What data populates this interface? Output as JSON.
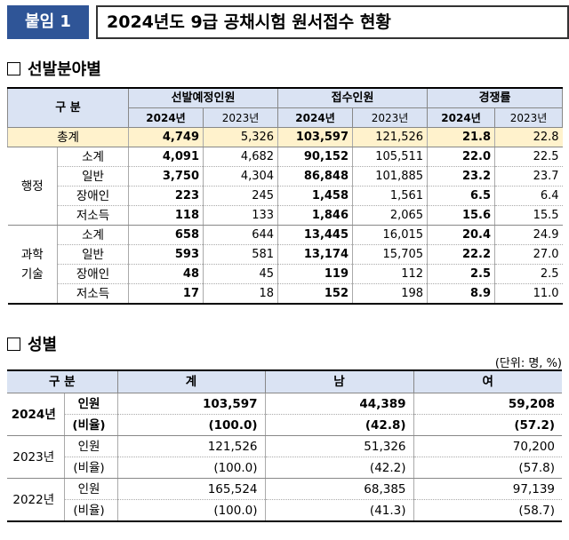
{
  "header": {
    "badge": "붙임 1",
    "title": "2024년도 9급 공채시험 원서접수 현황"
  },
  "section1": {
    "title": "선발분야별"
  },
  "section2": {
    "title": "성별",
    "unit": "(단위: 명, %)"
  },
  "table1": {
    "head_gubun": "구 분",
    "groups": [
      "선발예정인원",
      "접수인원",
      "경쟁률"
    ],
    "years": [
      "2024년",
      "2023년"
    ],
    "total": {
      "label": "총계",
      "vals": [
        "4,749",
        "5,326",
        "103,597",
        "121,526",
        "21.8",
        "22.8"
      ]
    },
    "admin": {
      "label": "행정",
      "rows": [
        {
          "label": "소계",
          "vals": [
            "4,091",
            "4,682",
            "90,152",
            "105,511",
            "22.0",
            "22.5"
          ]
        },
        {
          "label": "일반",
          "vals": [
            "3,750",
            "4,304",
            "86,848",
            "101,885",
            "23.2",
            "23.7"
          ]
        },
        {
          "label": "장애인",
          "vals": [
            "223",
            "245",
            "1,458",
            "1,561",
            "6.5",
            "6.4"
          ]
        },
        {
          "label": "저소득",
          "vals": [
            "118",
            "133",
            "1,846",
            "2,065",
            "15.6",
            "15.5"
          ]
        }
      ]
    },
    "tech": {
      "label1": "과학",
      "label2": "기술",
      "rows": [
        {
          "label": "소계",
          "vals": [
            "658",
            "644",
            "13,445",
            "16,015",
            "20.4",
            "24.9"
          ]
        },
        {
          "label": "일반",
          "vals": [
            "593",
            "581",
            "13,174",
            "15,705",
            "22.2",
            "27.0"
          ]
        },
        {
          "label": "장애인",
          "vals": [
            "48",
            "45",
            "119",
            "112",
            "2.5",
            "2.5"
          ]
        },
        {
          "label": "저소득",
          "vals": [
            "17",
            "18",
            "152",
            "198",
            "8.9",
            "11.0"
          ]
        }
      ]
    }
  },
  "table2": {
    "headers": [
      "구 분",
      "계",
      "남",
      "여"
    ],
    "rows": [
      {
        "year": "2024년",
        "lab1": "인원",
        "v1": [
          "103,597",
          "44,389",
          "59,208"
        ],
        "lab2": "(비율)",
        "v2": [
          "(100.0)",
          "(42.8)",
          "(57.2)"
        ]
      },
      {
        "year": "2023년",
        "lab1": "인원",
        "v1": [
          "121,526",
          "51,326",
          "70,200"
        ],
        "lab2": "(비율)",
        "v2": [
          "(100.0)",
          "(42.2)",
          "(57.8)"
        ]
      },
      {
        "year": "2022년",
        "lab1": "인원",
        "v1": [
          "165,524",
          "68,385",
          "97,139"
        ],
        "lab2": "(비율)",
        "v2": [
          "(100.0)",
          "(41.3)",
          "(58.7)"
        ]
      }
    ]
  }
}
